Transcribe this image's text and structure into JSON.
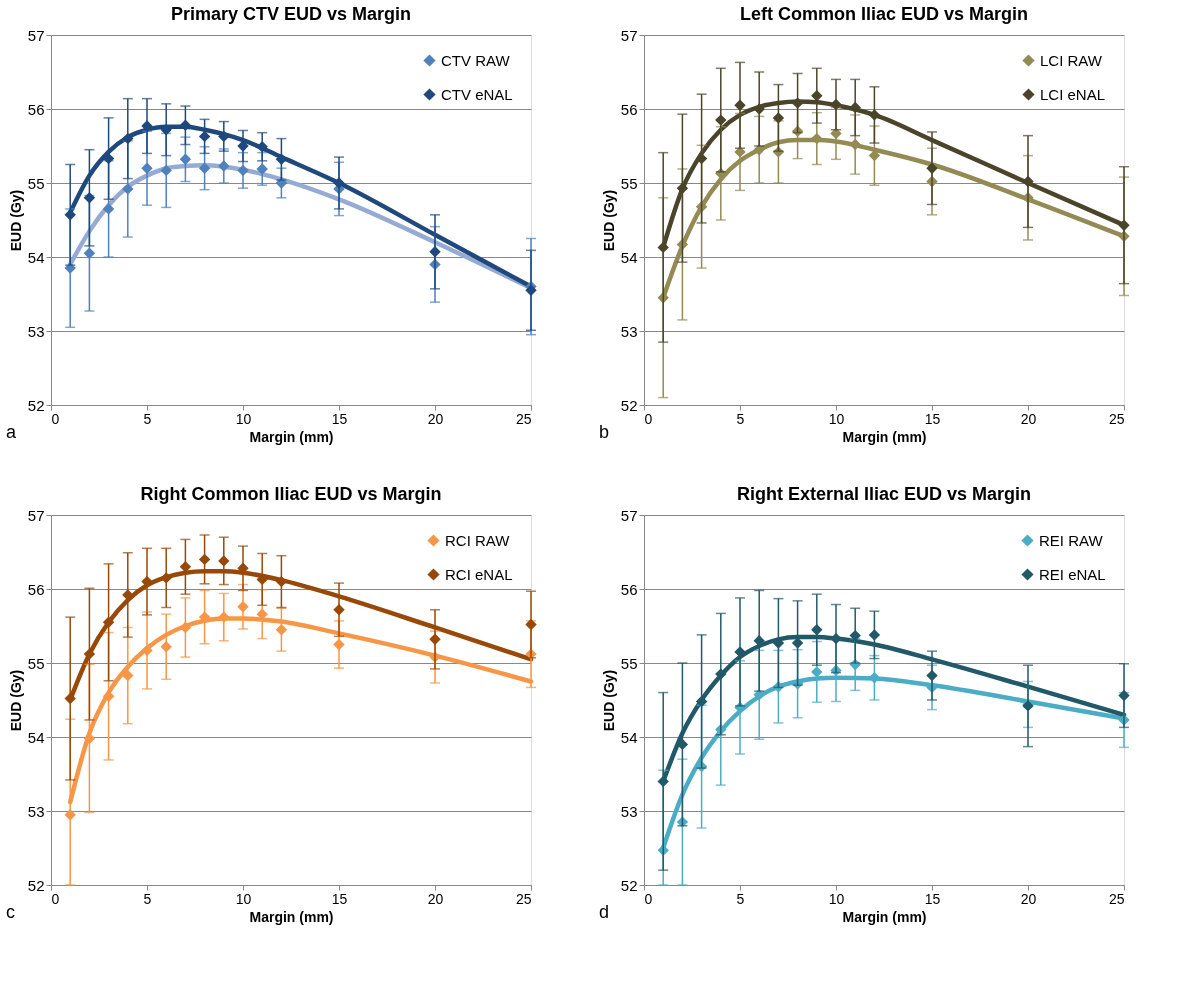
{
  "chart_data": [
    {
      "type": "scatter",
      "title": "Primary CTV EUD vs Margin",
      "xlabel": "Margin (mm)",
      "ylabel": "EUD (Gy)",
      "xlim": [
        0,
        25
      ],
      "xticks": [
        0,
        5,
        10,
        15,
        20,
        25
      ],
      "ylim": [
        52,
        57
      ],
      "yticks": [
        52,
        53,
        54,
        55,
        56,
        57
      ],
      "grid": "y",
      "legend": "top right",
      "marker": "diamond",
      "annotations": [
        "a"
      ],
      "x": [
        1,
        2,
        3,
        4,
        5,
        6,
        7,
        8,
        9,
        10,
        11,
        12,
        15,
        20,
        25
      ],
      "series": [
        {
          "type": "line",
          "color": "#95abd3",
          "marker": "none",
          "x": [
            1,
            2,
            3,
            4,
            5,
            6,
            7,
            8,
            9,
            10,
            12,
            15,
            20,
            25
          ],
          "values": [
            53.9,
            54.35,
            54.7,
            54.95,
            55.1,
            55.2,
            55.23,
            55.24,
            55.22,
            55.18,
            55.05,
            54.78,
            54.2,
            53.58
          ]
        },
        {
          "type": "line",
          "color": "#1f497d",
          "marker": "none",
          "x": [
            1,
            2,
            3,
            4,
            5,
            6,
            7,
            8,
            9,
            10,
            12,
            15,
            20,
            25
          ],
          "values": [
            54.6,
            55.1,
            55.42,
            55.62,
            55.72,
            55.76,
            55.76,
            55.72,
            55.66,
            55.58,
            55.35,
            55.0,
            54.3,
            53.6
          ]
        },
        {
          "name": "CTV RAW",
          "color": "#4f81bd",
          "values": [
            53.85,
            54.05,
            54.65,
            54.92,
            55.2,
            55.17,
            55.32,
            55.2,
            55.23,
            55.17,
            55.19,
            55.0,
            54.92,
            53.9,
            53.6
          ],
          "errors": [
            0.8,
            0.78,
            0.65,
            0.65,
            0.5,
            0.5,
            0.3,
            0.29,
            0.23,
            0.24,
            0.22,
            0.2,
            0.36,
            0.51,
            0.65
          ]
        },
        {
          "name": "CTV eNAL",
          "color": "#1f497d",
          "values": [
            54.57,
            54.8,
            55.33,
            55.6,
            55.77,
            55.72,
            55.78,
            55.63,
            55.63,
            55.5,
            55.49,
            55.32,
            55.0,
            54.07,
            53.55
          ],
          "errors": [
            0.68,
            0.65,
            0.55,
            0.54,
            0.37,
            0.35,
            0.26,
            0.23,
            0.2,
            0.21,
            0.19,
            0.28,
            0.35,
            0.5,
            0.54
          ]
        }
      ]
    },
    {
      "type": "scatter",
      "title": "Left Common Iliac EUD vs Margin",
      "xlabel": "Margin (mm)",
      "ylabel": "EUD (Gy)",
      "xlim": [
        0,
        25
      ],
      "xticks": [
        0,
        5,
        10,
        15,
        20,
        25
      ],
      "ylim": [
        52,
        57
      ],
      "yticks": [
        52,
        53,
        54,
        55,
        56,
        57
      ],
      "grid": "y",
      "legend": "top right",
      "marker": "diamond",
      "annotations": [
        "b"
      ],
      "x": [
        1,
        2,
        3,
        4,
        5,
        6,
        7,
        8,
        9,
        10,
        11,
        12,
        15,
        20,
        25
      ],
      "series": [
        {
          "type": "line",
          "color": "#948a54",
          "marker": "none",
          "x": [
            1,
            2,
            3,
            4,
            5,
            6,
            7,
            8,
            9,
            10,
            12,
            15,
            20,
            25
          ],
          "values": [
            53.45,
            54.15,
            54.68,
            55.05,
            55.3,
            55.45,
            55.55,
            55.58,
            55.58,
            55.56,
            55.45,
            55.25,
            54.78,
            54.28
          ]
        },
        {
          "type": "line",
          "color": "#4a452a",
          "marker": "none",
          "x": [
            1,
            2,
            3,
            4,
            5,
            6,
            7,
            8,
            9,
            10,
            12,
            15,
            20,
            25
          ],
          "values": [
            54.13,
            54.92,
            55.4,
            55.72,
            55.92,
            56.03,
            56.08,
            56.1,
            56.09,
            56.05,
            55.92,
            55.58,
            55.0,
            54.43
          ]
        },
        {
          "name": "LCI RAW",
          "color": "#948a54",
          "values": [
            53.45,
            54.17,
            54.68,
            55.13,
            55.42,
            55.45,
            55.42,
            55.7,
            55.6,
            55.67,
            55.52,
            55.37,
            55.02,
            54.8,
            54.28
          ],
          "errors": [
            1.35,
            1.02,
            0.83,
            0.63,
            0.52,
            0.45,
            0.42,
            0.37,
            0.35,
            0.35,
            0.4,
            0.4,
            0.45,
            0.57,
            0.8
          ]
        },
        {
          "name": "LCI eNAL",
          "color": "#4a452a",
          "values": [
            54.13,
            54.93,
            55.33,
            55.85,
            56.05,
            56.0,
            55.88,
            56.08,
            56.18,
            56.06,
            56.02,
            55.92,
            55.2,
            55.02,
            54.43
          ],
          "errors": [
            1.28,
            1.0,
            0.87,
            0.7,
            0.58,
            0.5,
            0.45,
            0.4,
            0.37,
            0.34,
            0.38,
            0.38,
            0.49,
            0.62,
            0.79
          ]
        }
      ]
    },
    {
      "type": "scatter",
      "title": "Right Common Iliac EUD vs Margin",
      "xlabel": "Margin (mm)",
      "ylabel": "EUD (Gy)",
      "xlim": [
        0,
        25
      ],
      "xticks": [
        0,
        5,
        10,
        15,
        20,
        25
      ],
      "ylim": [
        52,
        57
      ],
      "yticks": [
        52,
        53,
        54,
        55,
        56,
        57
      ],
      "grid": "y",
      "legend": "top right",
      "marker": "diamond",
      "annotations": [
        "c"
      ],
      "x": [
        1,
        2,
        3,
        4,
        5,
        6,
        7,
        8,
        9,
        10,
        11,
        12,
        15,
        20,
        25
      ],
      "series": [
        {
          "type": "line",
          "color": "#f79646",
          "marker": "none",
          "x": [
            1,
            2,
            3,
            4,
            5,
            6,
            7,
            8,
            9,
            10,
            12,
            15,
            20,
            25
          ],
          "values": [
            53.12,
            54.05,
            54.6,
            54.95,
            55.2,
            55.38,
            55.5,
            55.57,
            55.6,
            55.6,
            55.56,
            55.4,
            55.1,
            54.75
          ]
        },
        {
          "type": "line",
          "color": "#984807",
          "marker": "none",
          "x": [
            1,
            2,
            3,
            4,
            5,
            6,
            7,
            8,
            9,
            10,
            12,
            15,
            20,
            25
          ],
          "values": [
            54.5,
            55.12,
            55.55,
            55.85,
            56.05,
            56.16,
            56.22,
            56.24,
            56.24,
            56.22,
            56.12,
            55.9,
            55.48,
            55.05
          ]
        },
        {
          "name": "RCI RAW",
          "color": "#f79646",
          "values": [
            52.95,
            53.98,
            54.55,
            54.83,
            55.17,
            55.22,
            55.48,
            55.62,
            55.62,
            55.76,
            55.66,
            55.45,
            55.25,
            55.08,
            55.12
          ],
          "errors": [
            [
              52.0,
              54.24
            ],
            1.0,
            0.86,
            0.65,
            0.52,
            0.44,
            0.4,
            0.36,
            0.32,
            0.3,
            0.33,
            0.29,
            0.32,
            0.35,
            0.45
          ]
        },
        {
          "name": "RCI eNAL",
          "color": "#984807",
          "values": [
            54.52,
            55.12,
            55.55,
            55.92,
            56.1,
            56.15,
            56.3,
            56.4,
            56.38,
            56.28,
            56.13,
            56.1,
            55.72,
            55.32,
            55.52
          ],
          "errors": [
            1.1,
            0.89,
            0.79,
            0.57,
            0.45,
            0.4,
            0.37,
            0.33,
            0.32,
            0.3,
            0.35,
            0.35,
            0.36,
            0.4,
            0.45
          ]
        }
      ]
    },
    {
      "type": "scatter",
      "title": "Right External Iliac EUD vs Margin",
      "xlabel": "Margin (mm)",
      "ylabel": "EUD (Gy)",
      "xlim": [
        0,
        25
      ],
      "xticks": [
        0,
        5,
        10,
        15,
        20,
        25
      ],
      "ylim": [
        52,
        57
      ],
      "yticks": [
        52,
        53,
        54,
        55,
        56,
        57
      ],
      "grid": "y",
      "legend": "top right",
      "marker": "diamond",
      "annotations": [
        "d"
      ],
      "x": [
        1,
        2,
        3,
        4,
        5,
        6,
        7,
        8,
        9,
        10,
        11,
        12,
        15,
        20,
        25
      ],
      "series": [
        {
          "type": "line",
          "color": "#4bacc6",
          "marker": "none",
          "x": [
            1,
            2,
            3,
            4,
            5,
            6,
            7,
            8,
            9,
            10,
            12,
            15,
            20,
            25
          ],
          "values": [
            52.5,
            53.22,
            53.72,
            54.08,
            54.35,
            54.55,
            54.68,
            54.75,
            54.79,
            54.8,
            54.79,
            54.7,
            54.48,
            54.25
          ]
        },
        {
          "type": "line",
          "color": "#215968",
          "marker": "none",
          "x": [
            1,
            2,
            3,
            4,
            5,
            6,
            7,
            8,
            9,
            10,
            12,
            15,
            20,
            25
          ],
          "values": [
            53.4,
            54.05,
            54.5,
            54.83,
            55.08,
            55.23,
            55.32,
            55.35,
            55.35,
            55.33,
            55.25,
            55.05,
            54.68,
            54.3
          ]
        },
        {
          "name": "REI RAW",
          "color": "#4bacc6",
          "values": [
            52.47,
            52.85,
            53.6,
            54.1,
            54.4,
            54.57,
            54.68,
            54.72,
            54.88,
            54.9,
            54.98,
            54.8,
            54.67,
            54.44,
            54.23
          ],
          "errors": [
            [
              52.0,
              53.55
            ],
            [
              52.0,
              53.7
            ],
            0.83,
            0.75,
            0.63,
            0.6,
            0.49,
            0.46,
            0.41,
            0.42,
            0.35,
            0.3,
            0.3,
            0.31,
            0.37
          ]
        },
        {
          "name": "REI eNAL",
          "color": "#215968",
          "values": [
            53.4,
            53.9,
            54.48,
            54.85,
            55.15,
            55.3,
            55.27,
            55.27,
            55.45,
            55.33,
            55.37,
            55.38,
            54.83,
            54.42,
            54.56
          ],
          "errors": [
            1.2,
            1.1,
            0.9,
            0.82,
            0.73,
            0.68,
            0.6,
            0.57,
            0.48,
            0.46,
            0.37,
            0.32,
            0.33,
            0.55,
            0.43
          ]
        }
      ]
    }
  ]
}
